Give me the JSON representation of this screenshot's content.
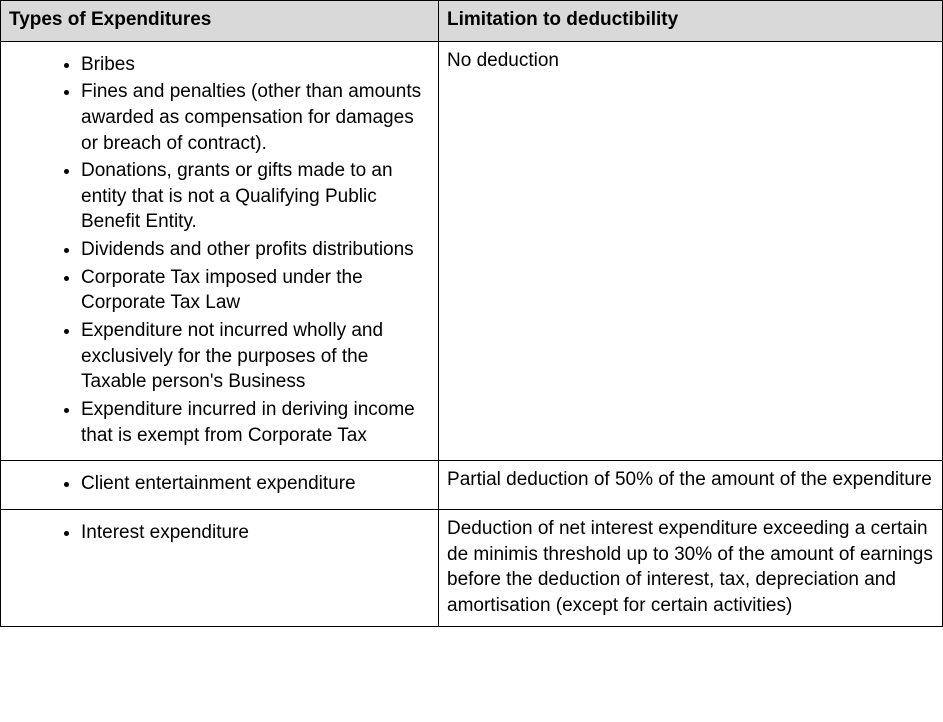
{
  "table": {
    "header_bg": "#d9d9d9",
    "border_color": "#000000",
    "text_color": "#000000",
    "font_family": "Arial",
    "base_fontsize_pt": 14,
    "columns": [
      {
        "label": "Types of Expenditures",
        "width_pct": 46.5
      },
      {
        "label": "Limitation to deductibility",
        "width_pct": 53.5
      }
    ],
    "rows": [
      {
        "types": [
          "Bribes",
          "Fines and penalties (other than amounts awarded as compensation for damages or breach of contract).",
          "Donations, grants or gifts made to an entity that is not a Qualifying Public Benefit Entity.",
          "Dividends and other profits distributions",
          "Corporate Tax imposed under the Corporate Tax Law",
          "Expenditure not incurred wholly and exclusively for the purposes of the Taxable person's Business",
          "Expenditure incurred in deriving income that is exempt from Corporate Tax"
        ],
        "limitation": "No deduction"
      },
      {
        "types": [
          "Client entertainment expenditure"
        ],
        "limitation": "Partial deduction of 50% of the amount of the expenditure"
      },
      {
        "types": [
          "Interest expenditure"
        ],
        "limitation": "Deduction of net interest expenditure exceeding a certain de minimis threshold up to 30% of the amount of earnings before the deduction of interest, tax, depreciation and amortisation (except for certain activities)"
      }
    ]
  }
}
